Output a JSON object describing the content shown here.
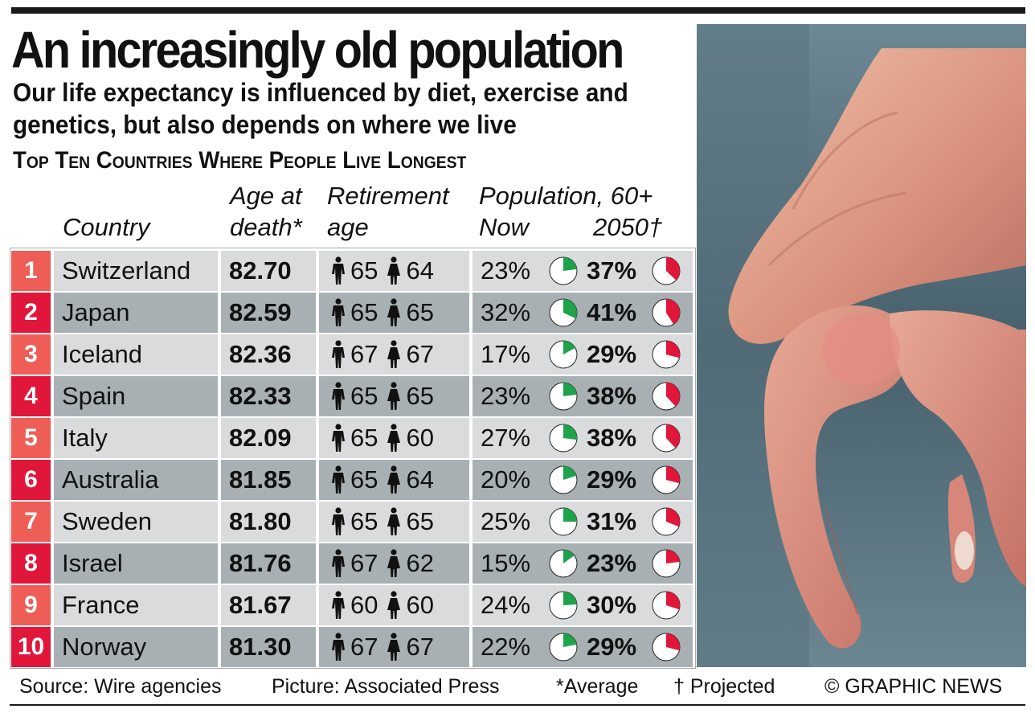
{
  "title": "An increasingly old population",
  "subtitle": "Our life expectancy is influenced by diet, exercise and genetics, but also depends on where we live",
  "heading": "Top Ten Countries Where People Live Longest",
  "columns": {
    "country": "Country",
    "age_line1": "Age at",
    "age_line2": "death*",
    "retire_line1": "Retirement",
    "retire_line2": "age",
    "pop_line1": "Population, 60+",
    "pop_now": "Now",
    "pop_future": "2050†"
  },
  "icons": {
    "male": "man-icon",
    "female": "woman-icon",
    "photo": "elderly-hands-photo"
  },
  "colors": {
    "rank_odd": "#ee5e57",
    "rank_even": "#e0173a",
    "row_light": "#d9dbdc",
    "row_dark": "#a8b0b3",
    "pie_now": "#1fa34a",
    "pie_future": "#e0173a"
  },
  "chart_data": {
    "type": "table",
    "rows": [
      {
        "rank": "1",
        "country": "Switzerland",
        "age": "82.70",
        "retire_m": "65",
        "retire_f": "64",
        "now": "23%",
        "future": "37%",
        "now_value": 23,
        "future_value": 37
      },
      {
        "rank": "2",
        "country": "Japan",
        "age": "82.59",
        "retire_m": "65",
        "retire_f": "65",
        "now": "32%",
        "future": "41%",
        "now_value": 32,
        "future_value": 41
      },
      {
        "rank": "3",
        "country": "Iceland",
        "age": "82.36",
        "retire_m": "67",
        "retire_f": "67",
        "now": "17%",
        "future": "29%",
        "now_value": 17,
        "future_value": 29
      },
      {
        "rank": "4",
        "country": "Spain",
        "age": "82.33",
        "retire_m": "65",
        "retire_f": "65",
        "now": "23%",
        "future": "38%",
        "now_value": 23,
        "future_value": 38
      },
      {
        "rank": "5",
        "country": "Italy",
        "age": "82.09",
        "retire_m": "65",
        "retire_f": "60",
        "now": "27%",
        "future": "38%",
        "now_value": 27,
        "future_value": 38
      },
      {
        "rank": "6",
        "country": "Australia",
        "age": "81.85",
        "retire_m": "65",
        "retire_f": "64",
        "now": "20%",
        "future": "29%",
        "now_value": 20,
        "future_value": 29
      },
      {
        "rank": "7",
        "country": "Sweden",
        "age": "81.80",
        "retire_m": "65",
        "retire_f": "65",
        "now": "25%",
        "future": "31%",
        "now_value": 25,
        "future_value": 31
      },
      {
        "rank": "8",
        "country": "Israel",
        "age": "81.76",
        "retire_m": "67",
        "retire_f": "62",
        "now": "15%",
        "future": "23%",
        "now_value": 15,
        "future_value": 23
      },
      {
        "rank": "9",
        "country": "France",
        "age": "81.67",
        "retire_m": "60",
        "retire_f": "60",
        "now": "24%",
        "future": "30%",
        "now_value": 24,
        "future_value": 30
      },
      {
        "rank": "10",
        "country": "Norway",
        "age": "81.30",
        "retire_m": "67",
        "retire_f": "67",
        "now": "22%",
        "future": "29%",
        "now_value": 22,
        "future_value": 29
      }
    ]
  },
  "footer": {
    "source": "Source: Wire agencies",
    "picture": "Picture: Associated Press",
    "average": "*Average",
    "projected": "† Projected",
    "copyright": "© GRAPHIC NEWS"
  }
}
